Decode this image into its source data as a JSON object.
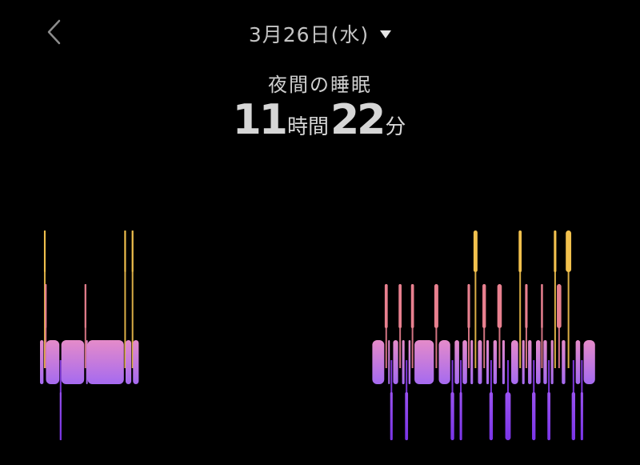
{
  "header": {
    "back_icon": "chevron-left-icon",
    "date": "3月26日(水)",
    "dropdown_icon": "triangle-down-icon"
  },
  "summary": {
    "title": "夜間の睡眠",
    "hours": "11",
    "hours_unit": "時間",
    "minutes": "22",
    "minutes_unit": "分"
  },
  "colors": {
    "awake": "#f2c14e",
    "rem": "#e8808f",
    "light": "#d884d6",
    "deep": "#8a3df0"
  },
  "chart_data": {
    "type": "hypnogram",
    "stages": [
      "awake",
      "rem",
      "light",
      "deep"
    ],
    "segments": [
      {
        "start": 0.0,
        "end": 0.8,
        "stage": "light"
      },
      {
        "start": 0.8,
        "end": 1.0,
        "stage": "awake"
      },
      {
        "start": 1.0,
        "end": 1.2,
        "stage": "rem"
      },
      {
        "start": 1.2,
        "end": 4.0,
        "stage": "light"
      },
      {
        "start": 4.0,
        "end": 4.3,
        "stage": "deep"
      },
      {
        "start": 4.3,
        "end": 9.0,
        "stage": "light"
      },
      {
        "start": 9.0,
        "end": 9.3,
        "stage": "rem"
      },
      {
        "start": 9.3,
        "end": 9.6,
        "stage": "light"
      },
      {
        "start": 9.6,
        "end": 17.0,
        "stage": "light"
      },
      {
        "start": 17.0,
        "end": 17.25,
        "stage": "awake"
      },
      {
        "start": 17.25,
        "end": 18.5,
        "stage": "light"
      },
      {
        "start": 18.5,
        "end": 18.75,
        "stage": "awake"
      },
      {
        "start": 18.75,
        "end": 20.0,
        "stage": "light"
      },
      {
        "start": 67.0,
        "end": 69.5,
        "stage": "light"
      },
      {
        "start": 69.5,
        "end": 70.2,
        "stage": "rem"
      },
      {
        "start": 70.2,
        "end": 70.6,
        "stage": "light"
      },
      {
        "start": 70.6,
        "end": 71.2,
        "stage": "deep"
      },
      {
        "start": 71.2,
        "end": 72.3,
        "stage": "light"
      },
      {
        "start": 72.3,
        "end": 73.0,
        "stage": "rem"
      },
      {
        "start": 73.0,
        "end": 73.6,
        "stage": "light"
      },
      {
        "start": 73.6,
        "end": 74.3,
        "stage": "deep"
      },
      {
        "start": 74.3,
        "end": 74.8,
        "stage": "light"
      },
      {
        "start": 74.8,
        "end": 75.5,
        "stage": "rem"
      },
      {
        "start": 75.5,
        "end": 79.5,
        "stage": "light"
      },
      {
        "start": 79.5,
        "end": 80.4,
        "stage": "rem"
      },
      {
        "start": 80.4,
        "end": 82.8,
        "stage": "light"
      },
      {
        "start": 82.8,
        "end": 83.6,
        "stage": "deep"
      },
      {
        "start": 83.6,
        "end": 84.6,
        "stage": "light"
      },
      {
        "start": 84.6,
        "end": 85.2,
        "stage": "deep"
      },
      {
        "start": 85.2,
        "end": 86.2,
        "stage": "light"
      },
      {
        "start": 86.2,
        "end": 86.8,
        "stage": "rem"
      },
      {
        "start": 86.8,
        "end": 87.4,
        "stage": "light"
      },
      {
        "start": 87.4,
        "end": 88.3,
        "stage": "awake"
      },
      {
        "start": 88.3,
        "end": 89.2,
        "stage": "light"
      },
      {
        "start": 89.2,
        "end": 90.0,
        "stage": "rem"
      },
      {
        "start": 90.0,
        "end": 90.6,
        "stage": "light"
      },
      {
        "start": 90.6,
        "end": 91.4,
        "stage": "deep"
      },
      {
        "start": 91.4,
        "end": 92.2,
        "stage": "light"
      },
      {
        "start": 92.2,
        "end": 93.2,
        "stage": "rem"
      },
      {
        "start": 93.2,
        "end": 93.8,
        "stage": "light"
      },
      {
        "start": 93.8,
        "end": 95.0,
        "stage": "deep"
      },
      {
        "start": 95.0,
        "end": 96.5,
        "stage": "light"
      },
      {
        "start": 96.5,
        "end": 97.2,
        "stage": "awake"
      },
      {
        "start": 97.2,
        "end": 97.8,
        "stage": "light"
      },
      {
        "start": 97.8,
        "end": 98.4,
        "stage": "rem"
      },
      {
        "start": 98.4,
        "end": 99.2,
        "stage": "light"
      },
      {
        "start": 99.2,
        "end": 100.0,
        "stage": "deep"
      },
      {
        "start": 100.0,
        "end": 101.0,
        "stage": "light"
      },
      {
        "start": 101.0,
        "end": 101.5,
        "stage": "rem"
      },
      {
        "start": 101.5,
        "end": 102.3,
        "stage": "light"
      },
      {
        "start": 102.3,
        "end": 103.0,
        "stage": "deep"
      },
      {
        "start": 103.0,
        "end": 103.6,
        "stage": "light"
      },
      {
        "start": 103.6,
        "end": 104.2,
        "stage": "awake"
      },
      {
        "start": 104.2,
        "end": 105.2,
        "stage": "rem"
      },
      {
        "start": 105.2,
        "end": 106.0,
        "stage": "light"
      },
      {
        "start": 106.0,
        "end": 107.2,
        "stage": "awake"
      },
      {
        "start": 107.2,
        "end": 108.0,
        "stage": "deep"
      },
      {
        "start": 108.0,
        "end": 109.0,
        "stage": "light"
      },
      {
        "start": 109.0,
        "end": 109.6,
        "stage": "deep"
      },
      {
        "start": 109.6,
        "end": 112.0,
        "stage": "light"
      }
    ]
  }
}
